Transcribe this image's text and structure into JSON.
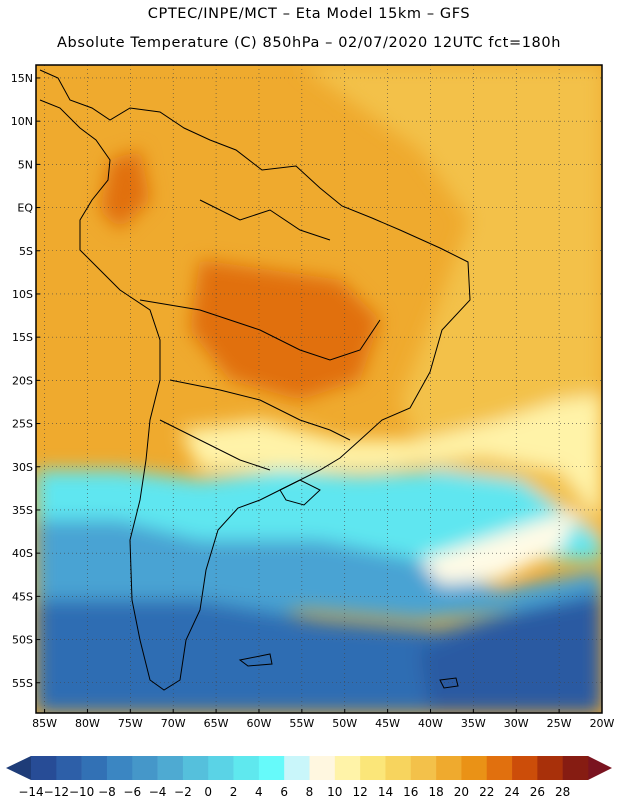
{
  "title_line1": "CPTEC/INPE/MCT –  Eta Model 15km – GFS",
  "title_line2": "Absolute Temperature (C) 850hPa – 02/07/2020 12UTC fct=180h",
  "lat_labels": [
    "15N",
    "10N",
    "5N",
    "EQ",
    "5S",
    "10S",
    "15S",
    "20S",
    "25S",
    "30S",
    "35S",
    "40S",
    "45S",
    "50S",
    "55S"
  ],
  "lon_labels": [
    "85W",
    "80W",
    "75W",
    "70W",
    "65W",
    "60W",
    "55W",
    "50W",
    "45W",
    "40W",
    "35W",
    "30W",
    "25W",
    "20W"
  ],
  "colorbar": {
    "labels": [
      "-14",
      "-12",
      "-10",
      "-8",
      "-6",
      "-4",
      "-2",
      "0",
      "2",
      "4",
      "6",
      "8",
      "10",
      "12",
      "14",
      "16",
      "18",
      "20",
      "22",
      "24",
      "26",
      "28"
    ],
    "low_color": "#1e3c78",
    "high_color": "#7a1420",
    "colors": [
      "#274c96",
      "#2d5fa8",
      "#3271b5",
      "#3b86c2",
      "#4597c9",
      "#4eaad2",
      "#55c0dc",
      "#5ad3e6",
      "#5fe8ee",
      "#66fafa",
      "#c9f6fa",
      "#fff7e0",
      "#fff3a8",
      "#fbe679",
      "#f7d45e",
      "#f3c14a",
      "#efaa2e",
      "#ea9216",
      "#e1700e",
      "#cc4d09",
      "#a8300a",
      "#861c12"
    ]
  },
  "temperature_field": {
    "ocean_south": "#2f6db3",
    "deep_south": "#2a5aa2",
    "cold_band": "#4aa3d3",
    "cyan_band": "#5fe6f0",
    "warm_north": "#efaa2e",
    "ocean_mid": "#f3c14a",
    "land_hot": "#e1700e",
    "pale_band": "#fff3a8"
  }
}
